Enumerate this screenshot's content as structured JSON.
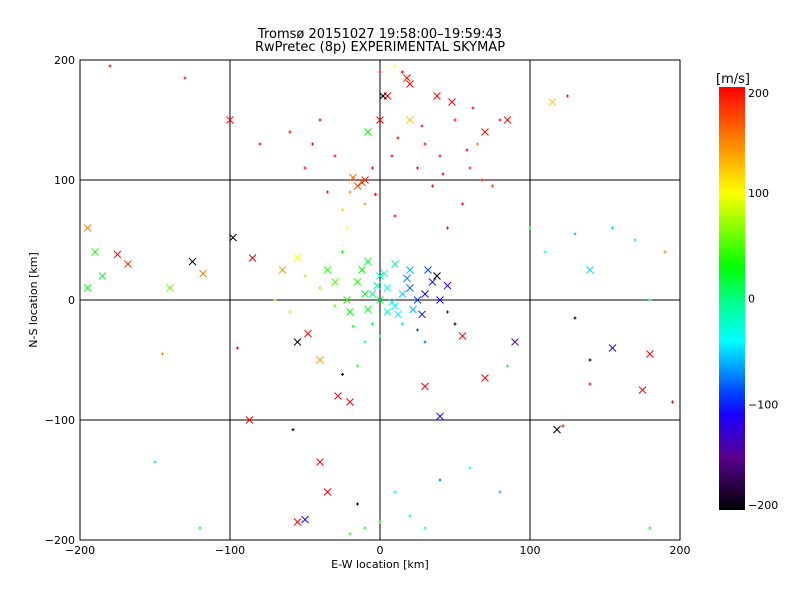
{
  "chart_data": {
    "type": "scatter",
    "title": "Tromsø 20151027 19:58:00–19:59:43",
    "subtitle": "RwPretec (8p) EXPERIMENTAL SKYMAP",
    "xlabel": "E-W location [km]",
    "ylabel": "N-S location [km]",
    "xlim": [
      -200,
      200
    ],
    "ylim": [
      -200,
      200
    ],
    "xticks": [
      "−200",
      "−100",
      "0",
      "100",
      "200"
    ],
    "yticks": [
      "−200",
      "−100",
      "0",
      "100",
      "200"
    ],
    "xtick_values": [
      -200,
      -100,
      0,
      100,
      200
    ],
    "ytick_values": [
      -200,
      -100,
      0,
      100,
      200
    ],
    "grid": true,
    "colorbar": {
      "label": "[m/s]",
      "range": [
        -200,
        200
      ],
      "ticks": [
        "200",
        "100",
        "0",
        "−100",
        "−200"
      ],
      "tick_values": [
        200,
        100,
        0,
        -100,
        -200
      ],
      "stops": [
        {
          "v": -200,
          "c": "#000000"
        },
        {
          "v": -150,
          "c": "#5a0090"
        },
        {
          "v": -110,
          "c": "#1a00ff"
        },
        {
          "v": -90,
          "c": "#0040ff"
        },
        {
          "v": -40,
          "c": "#00ffff"
        },
        {
          "v": 0,
          "c": "#00ff80"
        },
        {
          "v": 30,
          "c": "#00ff00"
        },
        {
          "v": 100,
          "c": "#ffff00"
        },
        {
          "v": 140,
          "c": "#ff9900"
        },
        {
          "v": 200,
          "c": "#ff0000"
        }
      ]
    },
    "point_format": [
      "x_km",
      "y_km",
      "velocity_ms",
      "marker"
    ],
    "points": [
      [
        -10,
        100,
        190,
        "x"
      ],
      [
        -15,
        95,
        170,
        "x"
      ],
      [
        -20,
        90,
        150,
        "+"
      ],
      [
        -5,
        110,
        200,
        "+"
      ],
      [
        0,
        150,
        200,
        "x"
      ],
      [
        5,
        170,
        200,
        "x"
      ],
      [
        15,
        190,
        200,
        "+"
      ],
      [
        20,
        180,
        200,
        "x"
      ],
      [
        30,
        130,
        200,
        "+"
      ],
      [
        40,
        120,
        195,
        "+"
      ],
      [
        50,
        150,
        200,
        "+"
      ],
      [
        60,
        110,
        190,
        "+"
      ],
      [
        70,
        140,
        200,
        "x"
      ],
      [
        80,
        150,
        200,
        "+"
      ],
      [
        75,
        95,
        180,
        "+"
      ],
      [
        55,
        80,
        200,
        "+"
      ],
      [
        35,
        95,
        200,
        "+"
      ],
      [
        10,
        70,
        200,
        "+"
      ],
      [
        -30,
        120,
        200,
        "+"
      ],
      [
        -40,
        150,
        200,
        "+"
      ],
      [
        -60,
        140,
        200,
        "+"
      ],
      [
        -80,
        130,
        200,
        "+"
      ],
      [
        -100,
        150,
        200,
        "x"
      ],
      [
        -130,
        185,
        200,
        "+"
      ],
      [
        -180,
        195,
        200,
        "+"
      ],
      [
        -25,
        75,
        120,
        "+"
      ],
      [
        -10,
        80,
        140,
        "+"
      ],
      [
        20,
        150,
        120,
        "x"
      ],
      [
        65,
        130,
        150,
        "+"
      ],
      [
        85,
        150,
        195,
        "x"
      ],
      [
        45,
        60,
        200,
        "+"
      ],
      [
        25,
        110,
        200,
        "+"
      ],
      [
        -50,
        110,
        200,
        "+"
      ],
      [
        0,
        190,
        200,
        "+"
      ],
      [
        10,
        195,
        100,
        "+"
      ],
      [
        -8,
        140,
        30,
        "x"
      ],
      [
        2,
        170,
        -200,
        "x"
      ],
      [
        115,
        165,
        120,
        "x"
      ],
      [
        125,
        170,
        200,
        "+"
      ],
      [
        48,
        165,
        200,
        "x"
      ],
      [
        18,
        185,
        200,
        "x"
      ],
      [
        -12,
        98,
        180,
        "x"
      ],
      [
        -18,
        102,
        160,
        "x"
      ],
      [
        -3,
        88,
        200,
        "+"
      ],
      [
        8,
        120,
        200,
        "+"
      ],
      [
        28,
        145,
        200,
        "+"
      ],
      [
        42,
        105,
        200,
        "+"
      ],
      [
        58,
        125,
        200,
        "+"
      ],
      [
        68,
        100,
        200,
        "+"
      ],
      [
        -35,
        90,
        200,
        "+"
      ],
      [
        -45,
        130,
        200,
        "+"
      ],
      [
        12,
        135,
        200,
        "+"
      ],
      [
        38,
        170,
        200,
        "x"
      ],
      [
        62,
        160,
        200,
        "+"
      ],
      [
        -22,
        60,
        100,
        "+"
      ],
      [
        0,
        0,
        10,
        "x"
      ],
      [
        5,
        10,
        -30,
        "x"
      ],
      [
        -10,
        5,
        20,
        "x"
      ],
      [
        10,
        -5,
        -40,
        "x"
      ],
      [
        20,
        10,
        -80,
        "x"
      ],
      [
        30,
        5,
        -110,
        "x"
      ],
      [
        40,
        0,
        -120,
        "x"
      ],
      [
        35,
        15,
        -100,
        "x"
      ],
      [
        -20,
        -10,
        30,
        "x"
      ],
      [
        -15,
        15,
        40,
        "x"
      ],
      [
        0,
        20,
        -20,
        "x"
      ],
      [
        -5,
        -20,
        10,
        "+"
      ],
      [
        15,
        -20,
        -50,
        "+"
      ],
      [
        25,
        -25,
        -90,
        "+"
      ],
      [
        -30,
        -5,
        50,
        "+"
      ],
      [
        -40,
        10,
        60,
        "+"
      ],
      [
        -50,
        20,
        70,
        "+"
      ],
      [
        -60,
        -10,
        70,
        "+"
      ],
      [
        -70,
        0,
        60,
        "+"
      ],
      [
        -55,
        35,
        100,
        "x"
      ],
      [
        -65,
        25,
        140,
        "x"
      ],
      [
        10,
        30,
        -10,
        "x"
      ],
      [
        -25,
        40,
        30,
        "+"
      ],
      [
        45,
        -10,
        -150,
        "+"
      ],
      [
        50,
        -20,
        -200,
        "+"
      ],
      [
        55,
        -30,
        200,
        "x"
      ],
      [
        30,
        -35,
        -80,
        "+"
      ],
      [
        0,
        -30,
        20,
        "+"
      ],
      [
        -10,
        -35,
        0,
        "+"
      ],
      [
        20,
        25,
        -60,
        "x"
      ],
      [
        5,
        -10,
        -20,
        "x"
      ],
      [
        -5,
        5,
        0,
        "x"
      ],
      [
        15,
        5,
        -50,
        "x"
      ],
      [
        -35,
        25,
        40,
        "x"
      ],
      [
        38,
        20,
        -200,
        "x"
      ],
      [
        28,
        -12,
        -100,
        "x"
      ],
      [
        -48,
        -28,
        200,
        "x"
      ],
      [
        -55,
        -35,
        -200,
        "x"
      ],
      [
        -20,
        -85,
        200,
        "x"
      ],
      [
        -25,
        -62,
        -200,
        "+"
      ],
      [
        -28,
        -80,
        200,
        "x"
      ],
      [
        -40,
        -50,
        140,
        "x"
      ],
      [
        -15,
        -55,
        40,
        "+"
      ],
      [
        30,
        -72,
        200,
        "x"
      ],
      [
        40,
        -97,
        -110,
        "x"
      ],
      [
        70,
        -65,
        200,
        "x"
      ],
      [
        90,
        -35,
        -150,
        "x"
      ],
      [
        85,
        -55,
        20,
        "+"
      ],
      [
        -2,
        12,
        -10,
        "x"
      ],
      [
        8,
        -2,
        -30,
        "x"
      ],
      [
        -8,
        -8,
        20,
        "x"
      ],
      [
        18,
        18,
        -70,
        "x"
      ],
      [
        25,
        0,
        -90,
        "x"
      ],
      [
        -12,
        25,
        30,
        "x"
      ],
      [
        12,
        -12,
        -40,
        "x"
      ],
      [
        -22,
        0,
        40,
        "x"
      ],
      [
        3,
        22,
        -35,
        "x"
      ],
      [
        22,
        -8,
        -60,
        "x"
      ],
      [
        -18,
        -22,
        25,
        "+"
      ],
      [
        -30,
        15,
        50,
        "x"
      ],
      [
        45,
        12,
        -130,
        "x"
      ],
      [
        32,
        25,
        -90,
        "x"
      ],
      [
        -8,
        32,
        15,
        "x"
      ],
      [
        -190,
        40,
        40,
        "x"
      ],
      [
        -185,
        20,
        20,
        "x"
      ],
      [
        -195,
        10,
        30,
        "x"
      ],
      [
        -195,
        60,
        150,
        "x"
      ],
      [
        -175,
        38,
        200,
        "x"
      ],
      [
        -168,
        30,
        180,
        "x"
      ],
      [
        -140,
        10,
        60,
        "x"
      ],
      [
        -125,
        32,
        -200,
        "x"
      ],
      [
        -118,
        22,
        150,
        "x"
      ],
      [
        -98,
        52,
        -200,
        "x"
      ],
      [
        -85,
        35,
        200,
        "x"
      ],
      [
        -145,
        -45,
        150,
        "+"
      ],
      [
        -95,
        -40,
        200,
        "+"
      ],
      [
        -87,
        -100,
        200,
        "x"
      ],
      [
        -58,
        -108,
        -200,
        "+"
      ],
      [
        -40,
        -135,
        200,
        "x"
      ],
      [
        -35,
        -160,
        200,
        "x"
      ],
      [
        -50,
        -183,
        -120,
        "x"
      ],
      [
        -55,
        -185,
        200,
        "x"
      ],
      [
        -15,
        -170,
        -200,
        "+"
      ],
      [
        0,
        -185,
        30,
        "+"
      ],
      [
        20,
        -180,
        10,
        "+"
      ],
      [
        -10,
        -190,
        20,
        "+"
      ],
      [
        30,
        -190,
        -20,
        "+"
      ],
      [
        -20,
        -195,
        40,
        "+"
      ],
      [
        10,
        -160,
        -30,
        "+"
      ],
      [
        40,
        -150,
        -80,
        "+"
      ],
      [
        118,
        -108,
        -200,
        "x"
      ],
      [
        122,
        -105,
        200,
        "+"
      ],
      [
        140,
        -50,
        -200,
        "+"
      ],
      [
        155,
        -40,
        -120,
        "x"
      ],
      [
        180,
        -45,
        200,
        "x"
      ],
      [
        175,
        -75,
        200,
        "x"
      ],
      [
        195,
        -85,
        200,
        "+"
      ],
      [
        140,
        -70,
        200,
        "+"
      ],
      [
        130,
        -15,
        -200,
        "+"
      ],
      [
        155,
        60,
        -50,
        "+"
      ],
      [
        140,
        25,
        -50,
        "x"
      ],
      [
        170,
        50,
        -50,
        "+"
      ],
      [
        130,
        55,
        -60,
        "+"
      ],
      [
        110,
        40,
        -40,
        "+"
      ],
      [
        190,
        40,
        150,
        "+"
      ],
      [
        180,
        0,
        -50,
        "+"
      ],
      [
        100,
        60,
        20,
        "+"
      ],
      [
        60,
        -140,
        -30,
        "+"
      ],
      [
        80,
        -160,
        -60,
        "+"
      ],
      [
        180,
        -190,
        30,
        "+"
      ],
      [
        -120,
        -190,
        20,
        "+"
      ],
      [
        -150,
        -135,
        -50,
        "+"
      ]
    ]
  }
}
